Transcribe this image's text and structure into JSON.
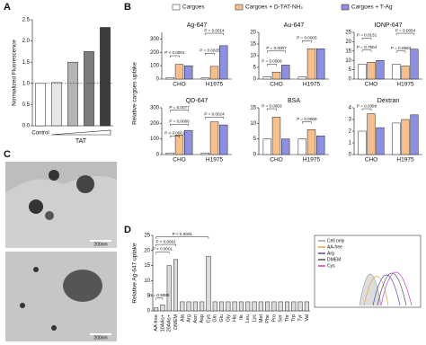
{
  "panel_labels": [
    "A",
    "B",
    "C",
    "D"
  ],
  "chart_data": [
    {
      "type": "bar",
      "y_label": "Normalized Fluorescence",
      "categories": [
        "Control",
        null,
        null,
        null,
        null
      ],
      "values": [
        1.0,
        1.02,
        1.5,
        1.75,
        2.32
      ],
      "colors": [
        "#ffffff",
        "#e6e6e6",
        "#b4b4b4",
        "#7c7c7c",
        "#3c3c3c"
      ],
      "group_label": "TAT",
      "reference_line": 1,
      "ylim": [
        0,
        2.5
      ],
      "yticks": [
        {
          "value": 0,
          "label": "0.0"
        },
        {
          "value": 0.5,
          "label": "0.5"
        },
        {
          "value": 1,
          "label": "1.0"
        },
        {
          "value": 1.5,
          "label": "1.5"
        },
        {
          "value": 2,
          "label": "2.0"
        },
        {
          "value": 2.5,
          "label": "2.5"
        }
      ]
    },
    {
      "type": "bar",
      "title": "Ag-647",
      "y_label": "Relative cargoes uptake",
      "categories": [
        "CHO",
        "H1975"
      ],
      "series": [
        {
          "name": "Cargoes",
          "color": "#ffffff",
          "values": [
            10,
            10
          ]
        },
        {
          "name": "Cargoes + D-TAT-NH₂",
          "color": "#f6c08e",
          "values": [
            110,
            95
          ]
        },
        {
          "name": "Cargoes + T-Ag",
          "color": "#8d8fe2",
          "values": [
            100,
            250
          ]
        }
      ],
      "ylim": [
        0,
        350
      ],
      "yticks": [
        0,
        100,
        200,
        300
      ],
      "annotations": [
        "P < 0.0001",
        "P = 0.0014",
        "P = 0.0035"
      ]
    },
    {
      "type": "bar",
      "title": "Au-647",
      "categories": [
        "CHO",
        "H1975"
      ],
      "series": [
        {
          "name": "Cargoes",
          "color": "#ffffff",
          "values": [
            1,
            1
          ]
        },
        {
          "name": "Cargoes + D-TAT-NH₂",
          "color": "#f6c08e",
          "values": [
            3,
            13
          ]
        },
        {
          "name": "Cargoes + T-Ag",
          "color": "#8d8fe2",
          "values": [
            6,
            13
          ]
        }
      ],
      "ylim": [
        0,
        20
      ],
      "yticks": [
        0,
        5,
        10,
        15,
        20
      ],
      "annotations": [
        "P = 0.0008",
        "P = 0.0007",
        "P = 0.0005"
      ]
    },
    {
      "type": "bar",
      "title": "IONP-647",
      "categories": [
        "CHO",
        "H1975"
      ],
      "series": [
        {
          "name": "Cargoes",
          "color": "#ffffff",
          "values": [
            8,
            8
          ]
        },
        {
          "name": "Cargoes + D-TAT-NH₂",
          "color": "#f6c08e",
          "values": [
            9,
            7
          ]
        },
        {
          "name": "Cargoes + T-Ag",
          "color": "#8d8fe2",
          "values": [
            10,
            16
          ]
        }
      ],
      "ylim": [
        0,
        25
      ],
      "yticks": [
        0,
        5,
        10,
        15,
        20,
        25
      ],
      "annotations": [
        "P = 0.0131",
        "P = 0.7504",
        "P = 0.0693",
        "P = 0.0054"
      ]
    },
    {
      "type": "bar",
      "title": "QD-647",
      "categories": [
        "CHO",
        "H1975"
      ],
      "series": [
        {
          "name": "Cargoes",
          "color": "#ffffff",
          "values": [
            10,
            10
          ]
        },
        {
          "name": "Cargoes + D-TAT-NH₂",
          "color": "#f6c08e",
          "values": [
            125,
            210
          ]
        },
        {
          "name": "Cargoes + T-Ag",
          "color": "#8d8fe2",
          "values": [
            155,
            190
          ]
        }
      ],
      "ylim": [
        0,
        300
      ],
      "yticks": [
        0,
        100,
        200,
        300
      ],
      "annotations": [
        "P < 0.0001",
        "P = 0.0086",
        "P = 0.0077",
        "P = 0.0024"
      ]
    },
    {
      "type": "bar",
      "title": "BSA",
      "categories": [
        "CHO",
        "H1975"
      ],
      "series": [
        {
          "name": "Cargoes",
          "color": "#ffffff",
          "values": [
            5,
            5
          ]
        },
        {
          "name": "Cargoes + D-TAT-NH₂",
          "color": "#f6c08e",
          "values": [
            12,
            8
          ]
        },
        {
          "name": "Cargoes + T-Ag",
          "color": "#8d8fe2",
          "values": [
            5,
            6
          ]
        }
      ],
      "ylim": [
        0,
        15
      ],
      "yticks": [
        0,
        5,
        10,
        15
      ],
      "annotations": [
        "P = 0.0003",
        "P = 0.0009"
      ]
    },
    {
      "type": "bar",
      "title": "Dextran",
      "categories": [
        "CHO",
        "H1975"
      ],
      "series": [
        {
          "name": "Cargoes",
          "color": "#ffffff",
          "values": [
            2,
            2.7
          ]
        },
        {
          "name": "Cargoes + D-TAT-NH₂",
          "color": "#f6c08e",
          "values": [
            3.5,
            3
          ]
        },
        {
          "name": "Cargoes + T-Ag",
          "color": "#8d8fe2",
          "values": [
            2.3,
            3.4
          ]
        }
      ],
      "ylim": [
        0,
        4
      ],
      "yticks": [
        0,
        1,
        2,
        3,
        4
      ],
      "annotations": [
        "P = 0.0399"
      ]
    },
    {
      "type": "bar",
      "y_label": "Relative Ag-647 uptake",
      "categories": [
        "AA-free",
        "10AAs+",
        "20AAs+",
        "DMEM",
        "Ala",
        "Arg",
        "Asn",
        "Asp",
        "Cys",
        "Gln",
        "Glu",
        "Gly",
        "His",
        "Ile",
        "Leu",
        "Lys",
        "Met",
        "Phe",
        "Pro",
        "Ser",
        "Thr",
        "Trp",
        "Tyr",
        "Val"
      ],
      "values": [
        1,
        2,
        15,
        17,
        3,
        3,
        3,
        3,
        18,
        3,
        3,
        3,
        3,
        3,
        3,
        3,
        3,
        3,
        3,
        3,
        3,
        3,
        3,
        3
      ],
      "color": "#dcdcdc",
      "ylim": [
        0,
        25
      ],
      "yticks": [
        0,
        5,
        10,
        15,
        20,
        25
      ],
      "annotations": [
        "P = 0.9088",
        "P < 0.0001",
        "P < 0.0001",
        "P < 0.0001"
      ],
      "inset_legend": [
        {
          "name": "Cell only",
          "color": "#a0a0a0"
        },
        {
          "name": "AA-free",
          "color": "#f0a040"
        },
        {
          "name": "Arg",
          "color": "#4a4ac0"
        },
        {
          "name": "DMEM",
          "color": "#505050"
        },
        {
          "name": "Cys",
          "color": "#c040c0"
        }
      ]
    }
  ],
  "figure_c": {
    "scale_bars": [
      "200nm",
      "200nm"
    ]
  }
}
